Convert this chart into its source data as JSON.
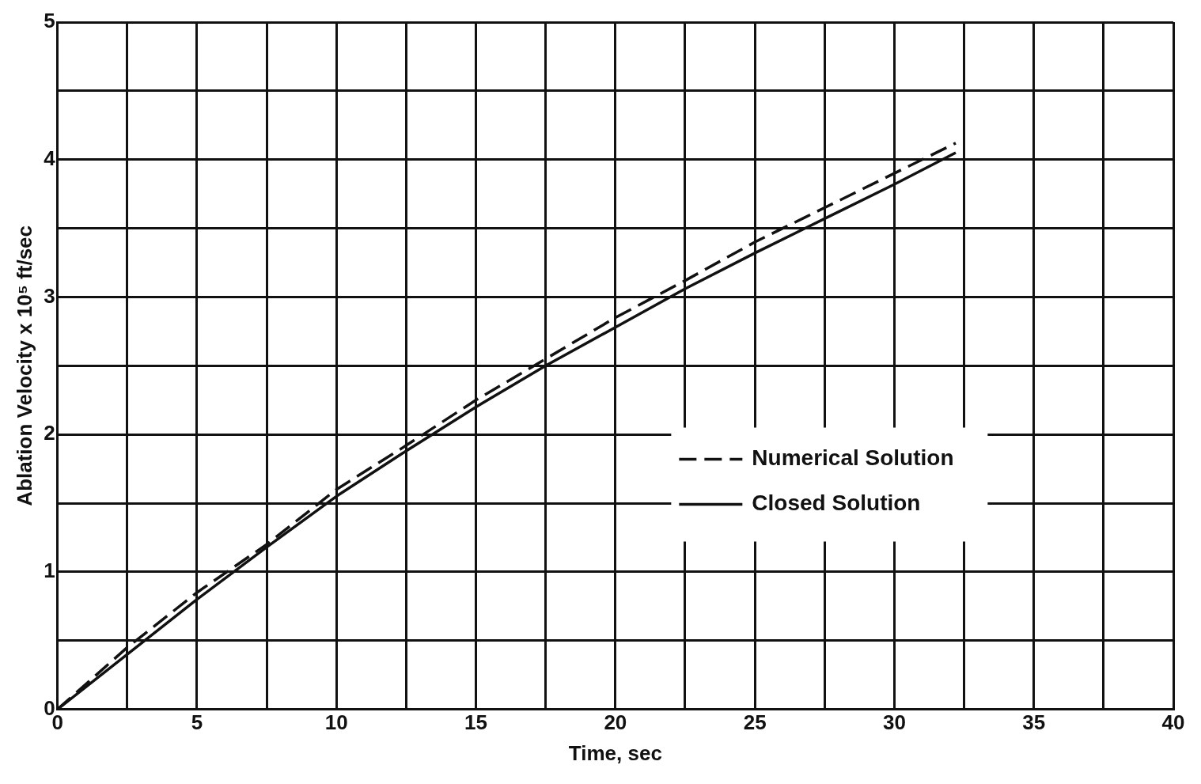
{
  "chart_data": {
    "type": "line",
    "xlabel": "Time, sec",
    "ylabel": "Ablation Velocity x 10⁵ ft/sec",
    "xlim": [
      0,
      40
    ],
    "ylim": [
      0,
      5
    ],
    "xticks": [
      0,
      {
        "value": 2.5,
        "label": null
      },
      5,
      {
        "value": 7.5,
        "label": null
      },
      10,
      {
        "value": 12.5,
        "label": null
      },
      15,
      {
        "value": 17.5,
        "label": null
      },
      20,
      {
        "value": 22.5,
        "label": null
      },
      25,
      {
        "value": 27.5,
        "label": null
      },
      30,
      {
        "value": 32.5,
        "label": null
      },
      35,
      {
        "value": 37.5,
        "label": null
      },
      40
    ],
    "yticks": [
      0,
      {
        "value": 0.5,
        "label": null
      },
      1,
      {
        "value": 1.5,
        "label": null
      },
      2,
      {
        "value": 2.5,
        "label": null
      },
      3,
      {
        "value": 3.5,
        "label": null
      },
      4,
      {
        "value": 4.5,
        "label": null
      },
      5
    ],
    "grid": true,
    "legend": "right",
    "marker": "none",
    "x": [
      0,
      2.5,
      5,
      7.5,
      10,
      12.5,
      15,
      17.5,
      20,
      22.5,
      25,
      27.5,
      30,
      32.2
    ],
    "series": [
      {
        "name": "Numerical Solution",
        "color": "#111111",
        "line_style": "dashed",
        "values": [
          0,
          0.45,
          0.85,
          1.2,
          1.6,
          1.92,
          2.25,
          2.55,
          2.85,
          3.12,
          3.4,
          3.65,
          3.9,
          4.12
        ]
      },
      {
        "name": "Closed Solution",
        "color": "#111111",
        "line_style": "solid",
        "values": [
          0,
          0.4,
          0.8,
          1.18,
          1.55,
          1.88,
          2.2,
          2.5,
          2.78,
          3.06,
          3.32,
          3.57,
          3.82,
          4.05
        ]
      }
    ]
  }
}
